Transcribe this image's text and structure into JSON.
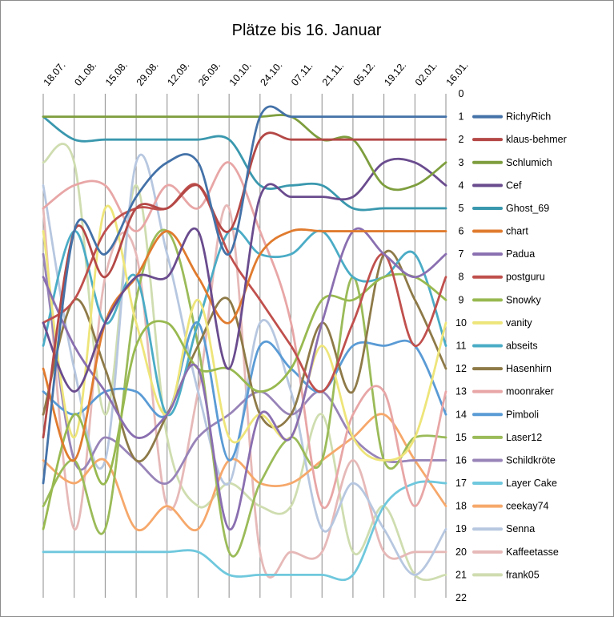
{
  "chart_data": {
    "type": "line",
    "title": "Plätze bis 16. Januar",
    "xlabel": "",
    "ylabel": "",
    "categories": [
      "18.07.",
      "01.08.",
      "15.08.",
      "29.08.",
      "12.09.",
      "26.09.",
      "10.10.",
      "24.10.",
      "07.11.",
      "21.11.",
      "05.12.",
      "19.12.",
      "02.01.",
      "16.01."
    ],
    "y_ticks": [
      "0",
      "1",
      "2",
      "3",
      "4",
      "5",
      "6",
      "7",
      "8",
      "9",
      "10",
      "11",
      "12",
      "13",
      "14",
      "15",
      "16",
      "17",
      "18",
      "19",
      "20",
      "21",
      "22"
    ],
    "ylim": [
      0,
      22
    ],
    "y_inverted": true,
    "y_axis_side": "right",
    "x_axis_side": "top",
    "vertical_gridlines": true,
    "legend_position": "right",
    "series": [
      {
        "name": "RichyRich",
        "color": "#4472A8",
        "values": [
          17,
          6,
          7,
          4.5,
          3,
          3,
          7,
          1,
          1,
          1,
          1,
          1,
          1,
          1
        ]
      },
      {
        "name": "klaus-behmer",
        "color": "#B44846",
        "values": [
          15,
          6,
          8,
          5,
          5,
          4,
          6,
          2,
          2,
          2,
          2,
          2,
          2,
          2
        ]
      },
      {
        "name": "Schlumich",
        "color": "#7E9E3E",
        "values": [
          1,
          1,
          1,
          1,
          1,
          1,
          1,
          1,
          1,
          2,
          2,
          4,
          4,
          3
        ]
      },
      {
        "name": "Cef",
        "color": "#6A4C8E",
        "values": [
          10,
          13,
          10,
          8,
          8,
          6,
          12,
          4.5,
          4.5,
          4.5,
          4.5,
          3,
          3,
          4
        ]
      },
      {
        "name": "Ghost_69",
        "color": "#3A98AE",
        "values": [
          1,
          2,
          2,
          2,
          2,
          2,
          2,
          4,
          4,
          4,
          5,
          5,
          5,
          5
        ]
      },
      {
        "name": "chart",
        "color": "#E07B2E",
        "values": [
          12,
          16,
          10,
          8,
          6,
          8,
          10,
          7,
          6,
          6,
          6,
          6,
          6,
          6
        ]
      },
      {
        "name": "Padua",
        "color": "#8A6FB0",
        "values": [
          8,
          11,
          13,
          15,
          14,
          12,
          19,
          14,
          15,
          10,
          6,
          7,
          8,
          7
        ]
      },
      {
        "name": "postguru",
        "color": "#C0504D",
        "values": [
          10,
          9,
          6,
          5,
          5,
          4,
          7,
          9,
          11,
          13,
          10,
          7,
          11,
          8
        ]
      },
      {
        "name": "Snowky",
        "color": "#98B950",
        "values": [
          19,
          14,
          17,
          11,
          10,
          12,
          12,
          13,
          12,
          9,
          9,
          8,
          8,
          9
        ]
      },
      {
        "name": "vanity",
        "color": "#EEE57A",
        "values": [
          6,
          15,
          5,
          10,
          14,
          9,
          15,
          14,
          15,
          11,
          15,
          16,
          15,
          10
        ]
      },
      {
        "name": "abseits",
        "color": "#4BACC6",
        "values": [
          11,
          6,
          10,
          8,
          14,
          10,
          6,
          7,
          7,
          6,
          8,
          8,
          7,
          11
        ]
      },
      {
        "name": "Hasenhirn",
        "color": "#8E7A48",
        "values": [
          14,
          9,
          12,
          16,
          14,
          11,
          9,
          14,
          14,
          10,
          13,
          7,
          9,
          12
        ]
      },
      {
        "name": "moonraker",
        "color": "#E8A6A6",
        "values": [
          5,
          4,
          4,
          6,
          4,
          5,
          3,
          6,
          10,
          18,
          14,
          13,
          18,
          13
        ]
      },
      {
        "name": "Pimboli",
        "color": "#5A9BD5",
        "values": [
          13,
          14,
          13,
          13,
          14,
          10,
          16,
          11,
          12,
          13,
          11,
          11,
          11,
          14
        ]
      },
      {
        "name": "Laser12",
        "color": "#9BBB59",
        "values": [
          18,
          16,
          19,
          9,
          6,
          11,
          20,
          17,
          15,
          16,
          8,
          16,
          15,
          15
        ]
      },
      {
        "name": "Schildkröte",
        "color": "#9884B8",
        "values": [
          7,
          16,
          15,
          16,
          17,
          15,
          14,
          13,
          14,
          13,
          15,
          16,
          16,
          16
        ]
      },
      {
        "name": "Layer Cake",
        "color": "#6FC8DD",
        "values": [
          20,
          20,
          20,
          20,
          20,
          20,
          21,
          21,
          21,
          21,
          21,
          18,
          17,
          17
        ]
      },
      {
        "name": "ceekay74",
        "color": "#F6A86B",
        "values": [
          16,
          17,
          16,
          19,
          18,
          19,
          16,
          17,
          17,
          16,
          15,
          14,
          16,
          18
        ]
      },
      {
        "name": "Senna",
        "color": "#B7C7E0",
        "values": [
          4,
          12,
          16,
          3,
          7,
          13,
          17,
          10,
          13,
          19,
          17,
          19,
          21,
          19
        ]
      },
      {
        "name": "Kaffeetasse",
        "color": "#E6B9B8",
        "values": [
          5,
          19,
          8,
          7,
          18,
          13,
          5,
          20,
          20,
          20,
          16,
          20,
          20,
          20
        ]
      },
      {
        "name": "frank05",
        "color": "#CFDDB0",
        "values": [
          3,
          3,
          14,
          4,
          15,
          18,
          17,
          18,
          18,
          14,
          20,
          18,
          21,
          21
        ]
      }
    ]
  }
}
